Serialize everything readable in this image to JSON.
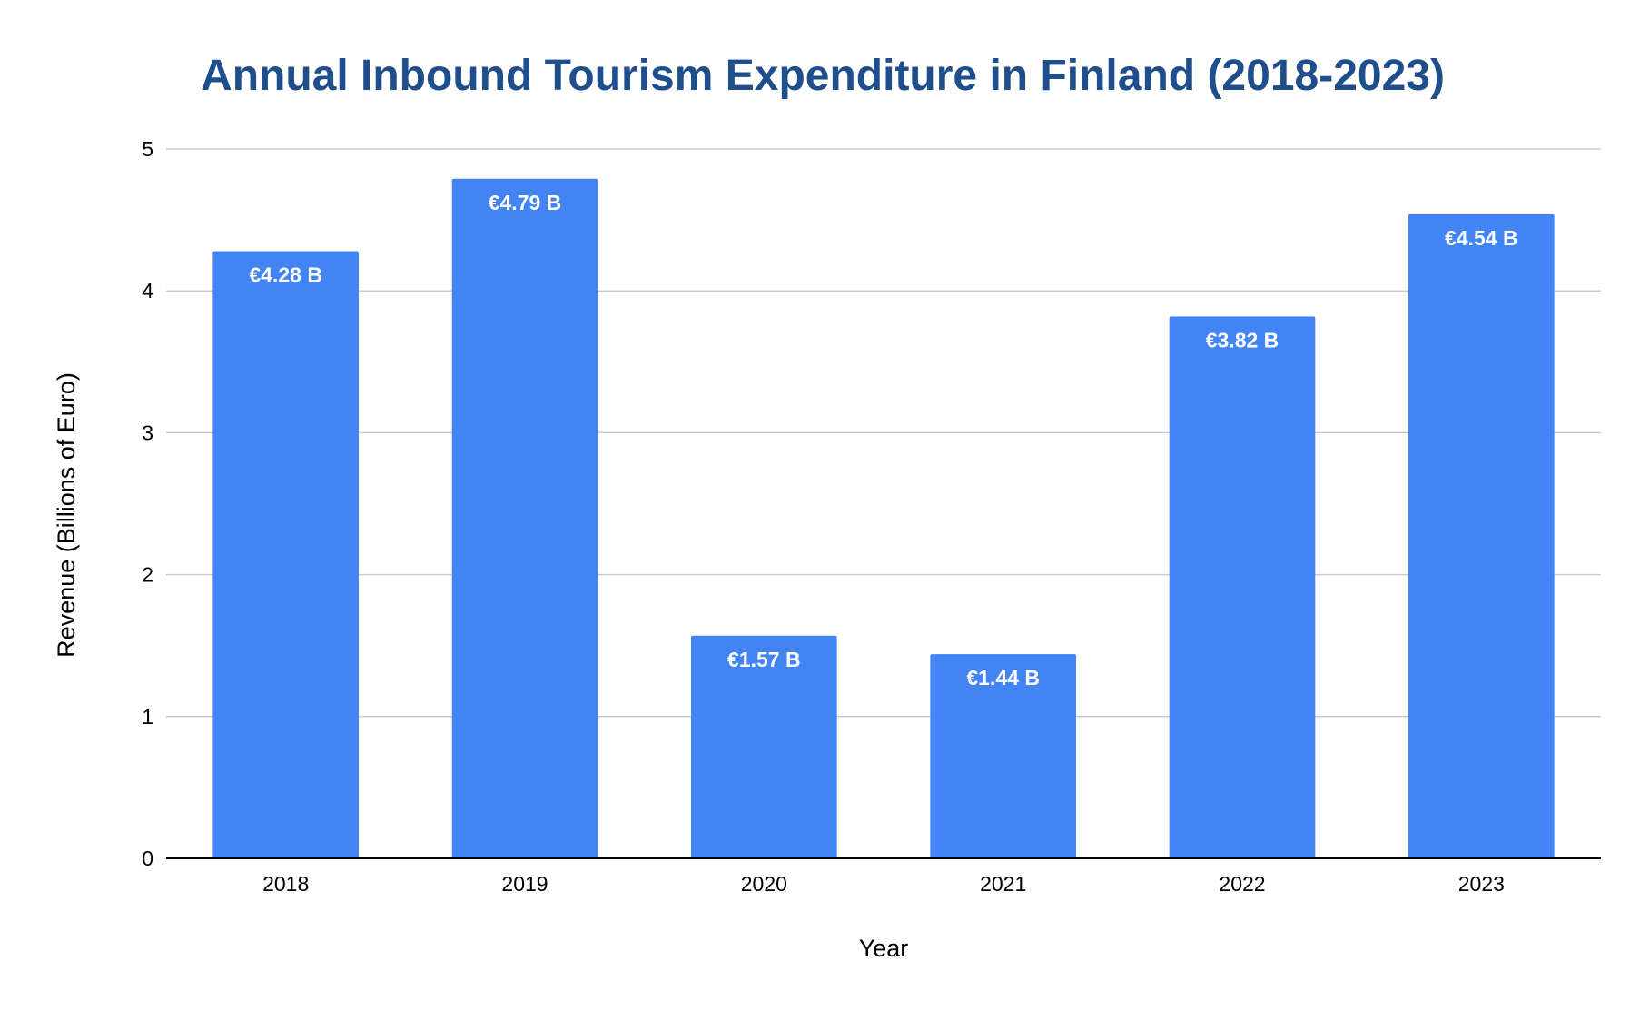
{
  "chart_data": {
    "type": "bar",
    "title": "Annual Inbound Tourism Expenditure in Finland (2018-2023)",
    "xlabel": "Year",
    "ylabel": "Revenue (Billions of Euro)",
    "categories": [
      "2018",
      "2019",
      "2020",
      "2021",
      "2022",
      "2023"
    ],
    "values": [
      4.28,
      4.79,
      1.57,
      1.44,
      3.82,
      4.54
    ],
    "data_labels": [
      "€4.28 B",
      "€4.79 B",
      "€1.57 B",
      "€1.44 B",
      "€3.82 B",
      "€4.54 B"
    ],
    "ylim": [
      0,
      5
    ],
    "yticks": [
      "0",
      "1",
      "2",
      "3",
      "4",
      "5"
    ],
    "grid": true,
    "legend": "none",
    "colors": {
      "bar": "#4384F4",
      "title": "#1F4E8C",
      "grid": "#CCCCCC",
      "axis": "#000000",
      "data_label": "#FFFFFF"
    }
  }
}
